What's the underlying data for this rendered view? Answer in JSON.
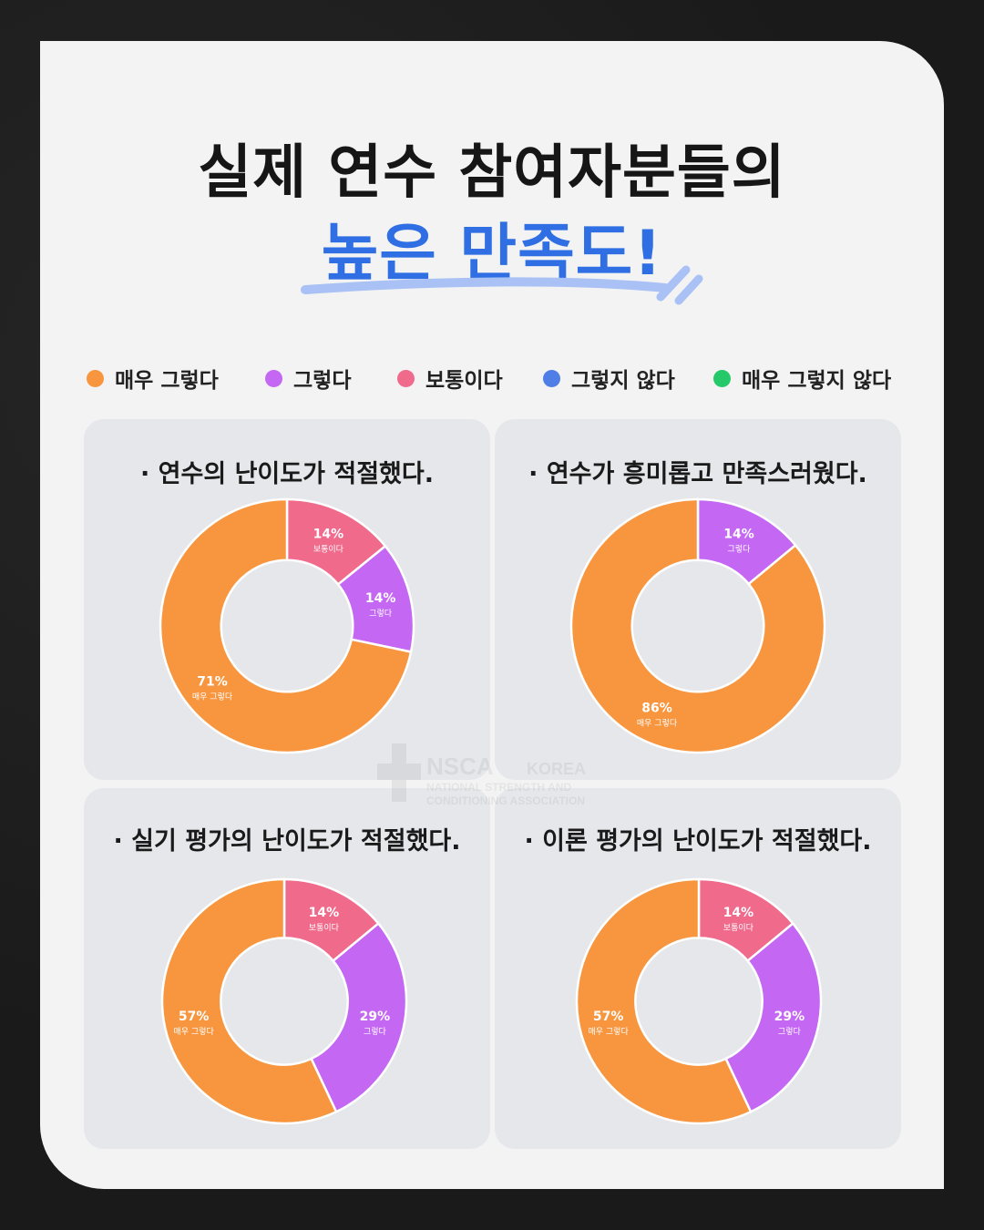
{
  "header": {
    "title_line1": "실제 연수 참여자분들의",
    "title_line2": "높은 만족도!"
  },
  "legend": [
    {
      "label": "매우 그렇다",
      "color": "#f7963f"
    },
    {
      "label": "그렇다",
      "color": "#c468f4"
    },
    {
      "label": "보통이다",
      "color": "#f06a8c"
    },
    {
      "label": "그렇지 않다",
      "color": "#4f7ee6"
    },
    {
      "label": "매우 그렇지 않다",
      "color": "#25c96a"
    }
  ],
  "watermark": {
    "brand": "NSCA",
    "country": "KOREA",
    "line1": "NATIONAL STRENGTH AND",
    "line2": "CONDITIONING ASSOCIATION"
  },
  "colors": {
    "매우 그렇다": "#f7963f",
    "그렇다": "#c468f4",
    "보통이다": "#f06a8c",
    "그렇지 않다": "#4f7ee6",
    "매우 그렇지 않다": "#25c96a"
  },
  "chart_data": [
    {
      "type": "pie",
      "donut": true,
      "title": "· 연수의 난이도가 적절했다.",
      "slices": [
        {
          "label": "보통이다",
          "value": 14,
          "text": "14%"
        },
        {
          "label": "그렇다",
          "value": 14,
          "text": "14%"
        },
        {
          "label": "매우 그렇다",
          "value": 71,
          "text": "71%"
        }
      ]
    },
    {
      "type": "pie",
      "donut": true,
      "title": "· 연수가 흥미롭고 만족스러웠다.",
      "slices": [
        {
          "label": "그렇다",
          "value": 14,
          "text": "14%"
        },
        {
          "label": "매우 그렇다",
          "value": 86,
          "text": "86%"
        }
      ]
    },
    {
      "type": "pie",
      "donut": true,
      "title": "· 실기 평가의 난이도가 적절했다.",
      "slices": [
        {
          "label": "보통이다",
          "value": 14,
          "text": "14%"
        },
        {
          "label": "그렇다",
          "value": 29,
          "text": "29%"
        },
        {
          "label": "매우 그렇다",
          "value": 57,
          "text": "57%"
        }
      ]
    },
    {
      "type": "pie",
      "donut": true,
      "title": "· 이론 평가의 난이도가 적절했다.",
      "slices": [
        {
          "label": "보통이다",
          "value": 14,
          "text": "14%"
        },
        {
          "label": "그렇다",
          "value": 29,
          "text": "29%"
        },
        {
          "label": "매우 그렇다",
          "value": 57,
          "text": "57%"
        }
      ]
    }
  ]
}
